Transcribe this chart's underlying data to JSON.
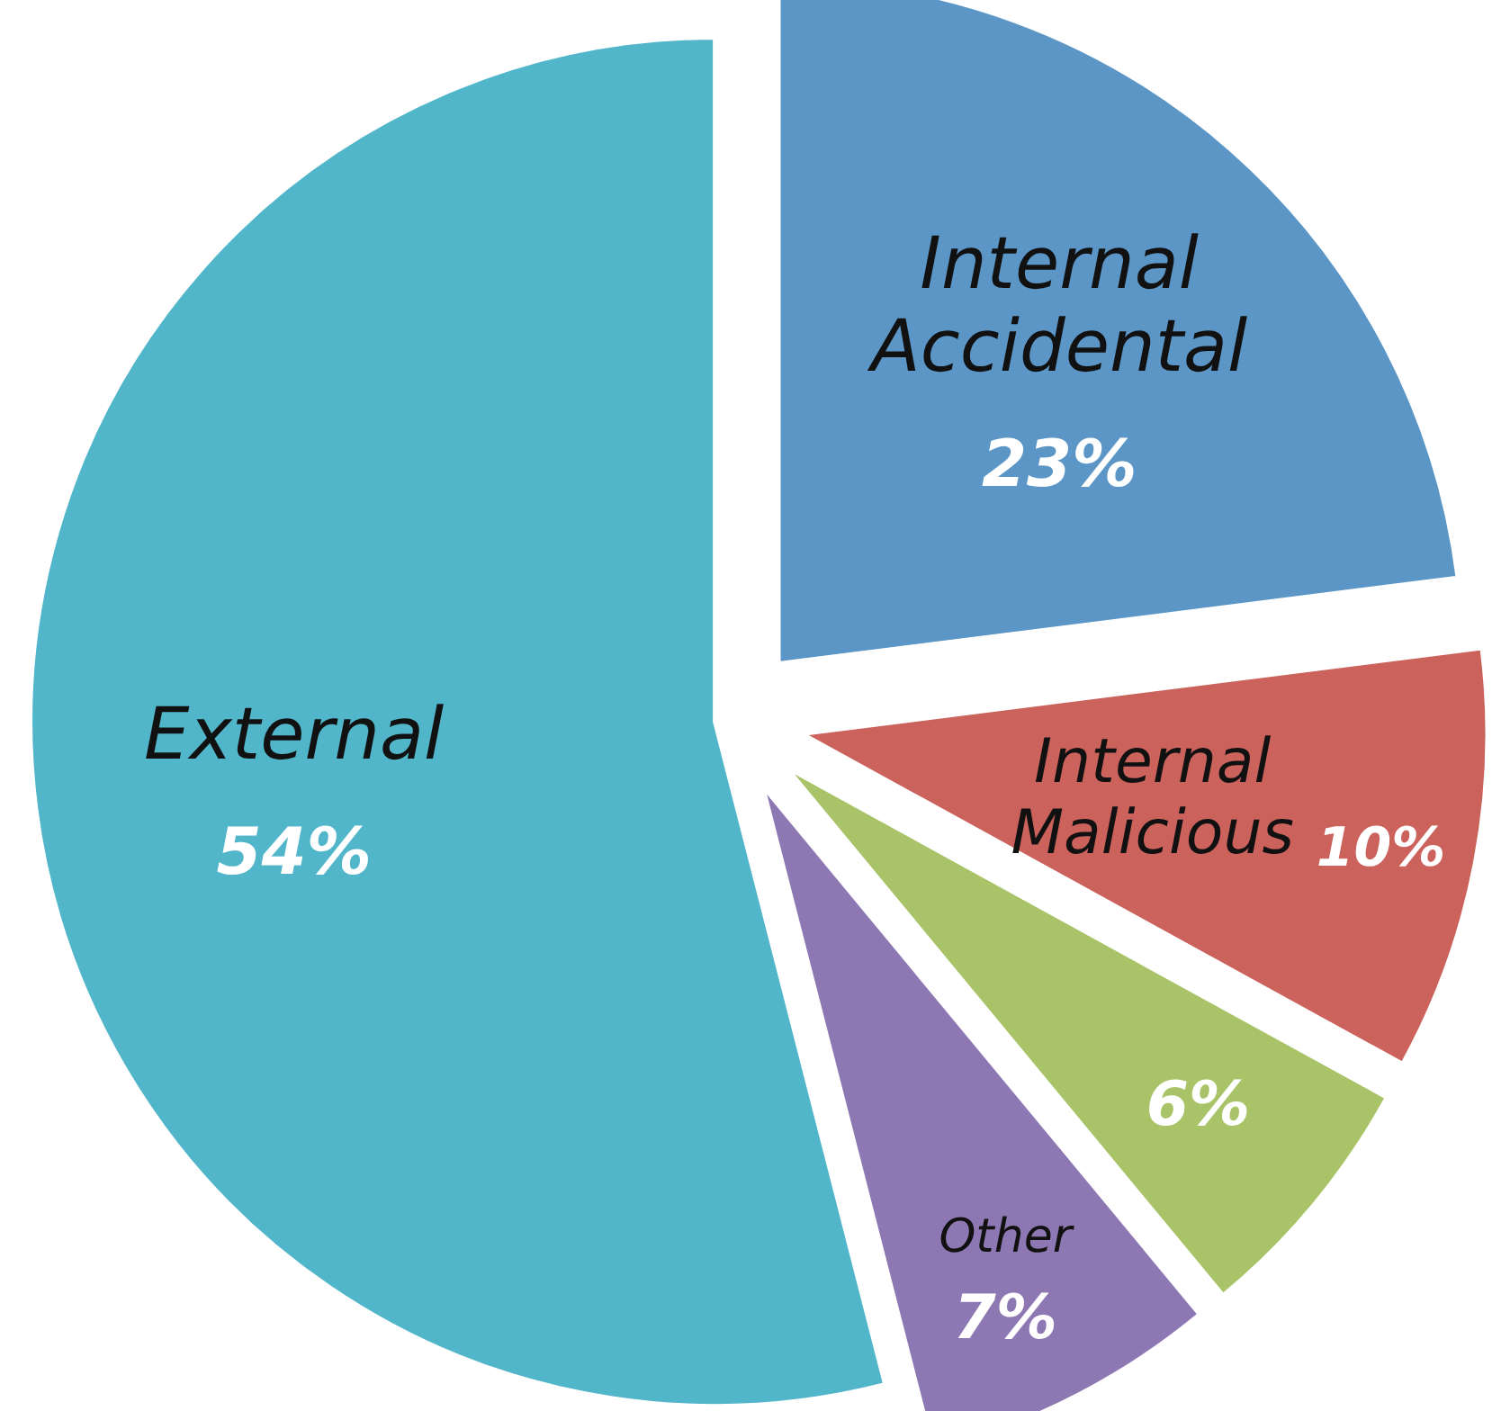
{
  "chart_data": {
    "type": "pie",
    "categories": [
      "Internal Accidental",
      "Internal Malicious",
      null,
      "Other",
      "External"
    ],
    "values": [
      23,
      10,
      6,
      7,
      54
    ],
    "colors": [
      "#5b96c6",
      "#cc625c",
      "#a9c468",
      "#8e78b3",
      "#52b6cb"
    ],
    "value_labels": [
      "23%",
      "10%",
      "6%",
      "7%",
      "54%"
    ]
  }
}
